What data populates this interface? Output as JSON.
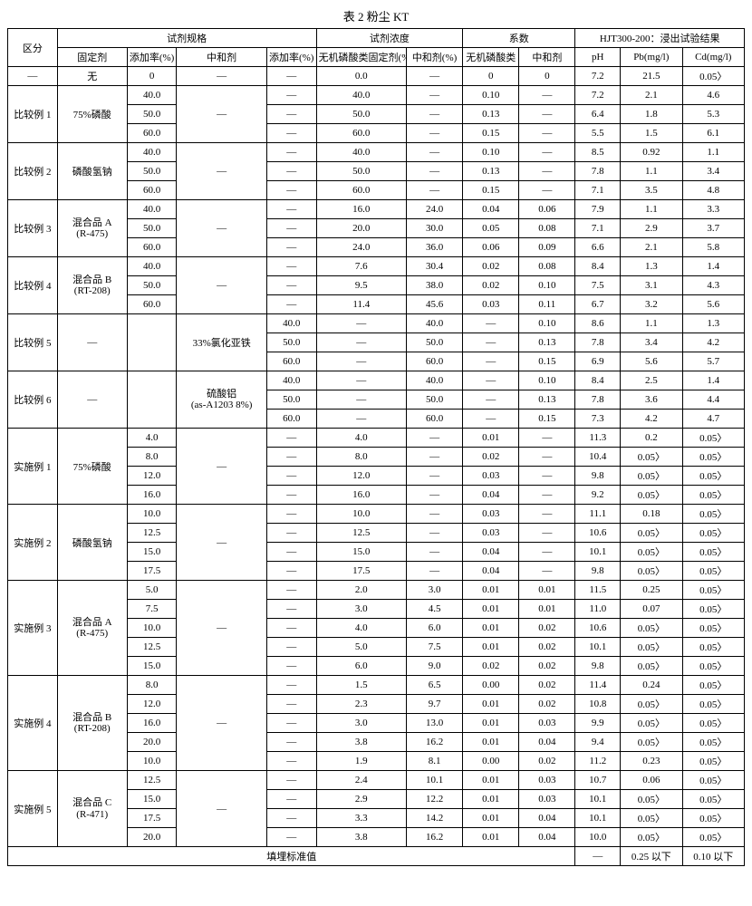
{
  "title": "表 2 粉尘 KT",
  "header": {
    "section": "区分",
    "reagent_spec": "试剂规格",
    "reagent_conc": "试剂浓度",
    "coeff": "系数",
    "hjt": "HJT300-200：浸出试验结果",
    "fix_agent": "固定剂",
    "add_rate": "添加率(%)",
    "neutralizer": "中和剂",
    "add_rate2": "添加率(%)",
    "inorg_fix": "无机磷酸类固定剂(%)",
    "neut_pct": "中和剂(%)",
    "inorg_phos": "无机磷酸类",
    "neutr": "中和剂",
    "ph": "pH",
    "pb": "Pb(mg/l)",
    "cd": "Cd(mg/l)"
  },
  "dash_row": {
    "section": "—",
    "fix": "无",
    "add1": "0",
    "neut": "—",
    "add2": "—",
    "c1": "0.0",
    "c2": "—",
    "k1": "0",
    "k2": "0",
    "ph": "7.2",
    "pb": "21.5",
    "cd": "0.05〉"
  },
  "groups": [
    {
      "section": "比较例 1",
      "fix": "75%磷酸",
      "neut": "—",
      "add2": [
        "—",
        "—",
        "—"
      ],
      "rows": [
        {
          "a": "40.0",
          "c1": "40.0",
          "c2": "—",
          "k1": "0.10",
          "k2": "—",
          "ph": "7.2",
          "pb": "2.1",
          "cd": "4.6"
        },
        {
          "a": "50.0",
          "c1": "50.0",
          "c2": "—",
          "k1": "0.13",
          "k2": "—",
          "ph": "6.4",
          "pb": "1.8",
          "cd": "5.3"
        },
        {
          "a": "60.0",
          "c1": "60.0",
          "c2": "—",
          "k1": "0.15",
          "k2": "—",
          "ph": "5.5",
          "pb": "1.5",
          "cd": "6.1"
        }
      ]
    },
    {
      "section": "比较例 2",
      "fix": "磷酸氢钠",
      "neut": "—",
      "add2": [
        "—",
        "—",
        "—"
      ],
      "rows": [
        {
          "a": "40.0",
          "c1": "40.0",
          "c2": "—",
          "k1": "0.10",
          "k2": "—",
          "ph": "8.5",
          "pb": "0.92",
          "cd": "1.1"
        },
        {
          "a": "50.0",
          "c1": "50.0",
          "c2": "—",
          "k1": "0.13",
          "k2": "—",
          "ph": "7.8",
          "pb": "1.1",
          "cd": "3.4"
        },
        {
          "a": "60.0",
          "c1": "60.0",
          "c2": "—",
          "k1": "0.15",
          "k2": "—",
          "ph": "7.1",
          "pb": "3.5",
          "cd": "4.8"
        }
      ]
    },
    {
      "section": "比较例 3",
      "fix_lines": [
        "混合品 A",
        "(R-475)"
      ],
      "neut": "—",
      "add2": [
        "—",
        "—",
        "—"
      ],
      "rows": [
        {
          "a": "40.0",
          "c1": "16.0",
          "c2": "24.0",
          "k1": "0.04",
          "k2": "0.06",
          "ph": "7.9",
          "pb": "1.1",
          "cd": "3.3"
        },
        {
          "a": "50.0",
          "c1": "20.0",
          "c2": "30.0",
          "k1": "0.05",
          "k2": "0.08",
          "ph": "7.1",
          "pb": "2.9",
          "cd": "3.7"
        },
        {
          "a": "60.0",
          "c1": "24.0",
          "c2": "36.0",
          "k1": "0.06",
          "k2": "0.09",
          "ph": "6.6",
          "pb": "2.1",
          "cd": "5.8"
        }
      ]
    },
    {
      "section": "比较例 4",
      "fix_lines": [
        "混合品 B",
        "(RT-208)"
      ],
      "neut": "—",
      "add2": [
        "—",
        "—",
        "—"
      ],
      "rows": [
        {
          "a": "40.0",
          "c1": "7.6",
          "c2": "30.4",
          "k1": "0.02",
          "k2": "0.08",
          "ph": "8.4",
          "pb": "1.3",
          "cd": "1.4"
        },
        {
          "a": "50.0",
          "c1": "9.5",
          "c2": "38.0",
          "k1": "0.02",
          "k2": "0.10",
          "ph": "7.5",
          "pb": "3.1",
          "cd": "4.3"
        },
        {
          "a": "60.0",
          "c1": "11.4",
          "c2": "45.6",
          "k1": "0.03",
          "k2": "0.11",
          "ph": "6.7",
          "pb": "3.2",
          "cd": "5.6"
        }
      ]
    },
    {
      "section": "比较例 5",
      "fix": "—",
      "ablank": true,
      "neut": "33%氯化亚铁",
      "add2": [
        "40.0",
        "50.0",
        "60.0"
      ],
      "rows": [
        {
          "a": "",
          "c1": "—",
          "c2": "40.0",
          "k1": "—",
          "k2": "0.10",
          "ph": "8.6",
          "pb": "1.1",
          "cd": "1.3"
        },
        {
          "a": "",
          "c1": "—",
          "c2": "50.0",
          "k1": "—",
          "k2": "0.13",
          "ph": "7.8",
          "pb": "3.4",
          "cd": "4.2"
        },
        {
          "a": "",
          "c1": "—",
          "c2": "60.0",
          "k1": "—",
          "k2": "0.15",
          "ph": "6.9",
          "pb": "5.6",
          "cd": "5.7"
        }
      ]
    },
    {
      "section": "比较例 6",
      "fix": "—",
      "ablank": true,
      "neut_lines": [
        "硫酸铝",
        "(as-A1203 8%)"
      ],
      "add2": [
        "40.0",
        "50.0",
        "60.0"
      ],
      "rows": [
        {
          "a": "",
          "c1": "—",
          "c2": "40.0",
          "k1": "—",
          "k2": "0.10",
          "ph": "8.4",
          "pb": "2.5",
          "cd": "1.4"
        },
        {
          "a": "",
          "c1": "—",
          "c2": "50.0",
          "k1": "—",
          "k2": "0.13",
          "ph": "7.8",
          "pb": "3.6",
          "cd": "4.4"
        },
        {
          "a": "",
          "c1": "—",
          "c2": "60.0",
          "k1": "—",
          "k2": "0.15",
          "ph": "7.3",
          "pb": "4.2",
          "cd": "4.7"
        }
      ]
    },
    {
      "section": "实施例 1",
      "fix": "75%磷酸",
      "neut": "—",
      "add2": [
        "—",
        "—",
        "—",
        "—"
      ],
      "rowspan": 4,
      "rows": [
        {
          "a": "4.0",
          "c1": "4.0",
          "c2": "—",
          "k1": "0.01",
          "k2": "—",
          "ph": "11.3",
          "pb": "0.2",
          "cd": "0.05〉"
        },
        {
          "a": "8.0",
          "c1": "8.0",
          "c2": "—",
          "k1": "0.02",
          "k2": "—",
          "ph": "10.4",
          "pb": "0.05〉",
          "cd": "0.05〉"
        },
        {
          "a": "12.0",
          "c1": "12.0",
          "c2": "—",
          "k1": "0.03",
          "k2": "—",
          "ph": "9.8",
          "pb": "0.05〉",
          "cd": "0.05〉"
        },
        {
          "a": "16.0",
          "c1": "16.0",
          "c2": "—",
          "k1": "0.04",
          "k2": "—",
          "ph": "9.2",
          "pb": "0.05〉",
          "cd": "0.05〉"
        }
      ]
    },
    {
      "section": "实施例 2",
      "fix": "磷酸氢钠",
      "neut": "—",
      "add2": [
        "—",
        "—",
        "—",
        "—"
      ],
      "rowspan": 4,
      "rows": [
        {
          "a": "10.0",
          "c1": "10.0",
          "c2": "—",
          "k1": "0.03",
          "k2": "—",
          "ph": "11.1",
          "pb": "0.18",
          "cd": "0.05〉"
        },
        {
          "a": "12.5",
          "c1": "12.5",
          "c2": "—",
          "k1": "0.03",
          "k2": "—",
          "ph": "10.6",
          "pb": "0.05〉",
          "cd": "0.05〉"
        },
        {
          "a": "15.0",
          "c1": "15.0",
          "c2": "—",
          "k1": "0.04",
          "k2": "—",
          "ph": "10.1",
          "pb": "0.05〉",
          "cd": "0.05〉"
        },
        {
          "a": "17.5",
          "c1": "17.5",
          "c2": "—",
          "k1": "0.04",
          "k2": "—",
          "ph": "9.8",
          "pb": "0.05〉",
          "cd": "0.05〉"
        }
      ]
    },
    {
      "section": "实施例 3",
      "fix_lines": [
        "混合品 A",
        "(R-475)"
      ],
      "neut": "—",
      "add2": [
        "—",
        "—",
        "—",
        "—",
        "—"
      ],
      "rowspan": 5,
      "rows": [
        {
          "a": "5.0",
          "c1": "2.0",
          "c2": "3.0",
          "k1": "0.01",
          "k2": "0.01",
          "ph": "11.5",
          "pb": "0.25",
          "cd": "0.05〉"
        },
        {
          "a": "7.5",
          "c1": "3.0",
          "c2": "4.5",
          "k1": "0.01",
          "k2": "0.01",
          "ph": "11.0",
          "pb": "0.07",
          "cd": "0.05〉"
        },
        {
          "a": "10.0",
          "c1": "4.0",
          "c2": "6.0",
          "k1": "0.01",
          "k2": "0.02",
          "ph": "10.6",
          "pb": "0.05〉",
          "cd": "0.05〉"
        },
        {
          "a": "12.5",
          "c1": "5.0",
          "c2": "7.5",
          "k1": "0.01",
          "k2": "0.02",
          "ph": "10.1",
          "pb": "0.05〉",
          "cd": "0.05〉"
        },
        {
          "a": "15.0",
          "c1": "6.0",
          "c2": "9.0",
          "k1": "0.02",
          "k2": "0.02",
          "ph": "9.8",
          "pb": "0.05〉",
          "cd": "0.05〉"
        }
      ]
    },
    {
      "section": "实施例 4",
      "fix_lines": [
        "混合品 B",
        "(RT-208)"
      ],
      "neut": "—",
      "add2": [
        "—",
        "—",
        "—",
        "—",
        "—"
      ],
      "rowspan": 5,
      "rows": [
        {
          "a": "8.0",
          "c1": "1.5",
          "c2": "6.5",
          "k1": "0.00",
          "k2": "0.02",
          "ph": "11.4",
          "pb": "0.24",
          "cd": "0.05〉"
        },
        {
          "a": "12.0",
          "c1": "2.3",
          "c2": "9.7",
          "k1": "0.01",
          "k2": "0.02",
          "ph": "10.8",
          "pb": "0.05〉",
          "cd": "0.05〉"
        },
        {
          "a": "16.0",
          "c1": "3.0",
          "c2": "13.0",
          "k1": "0.01",
          "k2": "0.03",
          "ph": "9.9",
          "pb": "0.05〉",
          "cd": "0.05〉"
        },
        {
          "a": "20.0",
          "c1": "3.8",
          "c2": "16.2",
          "k1": "0.01",
          "k2": "0.04",
          "ph": "9.4",
          "pb": "0.05〉",
          "cd": "0.05〉"
        },
        {
          "a": "10.0",
          "c1": "1.9",
          "c2": "8.1",
          "k1": "0.00",
          "k2": "0.02",
          "ph": "11.2",
          "pb": "0.23",
          "cd": "0.05〉"
        }
      ]
    },
    {
      "section": "实施例 5",
      "fix_lines": [
        "混合品 C",
        "(R-471)"
      ],
      "neut": "—",
      "add2": [
        "—",
        "—",
        "—",
        "—"
      ],
      "rowspan": 4,
      "rows": [
        {
          "a": "12.5",
          "c1": "2.4",
          "c2": "10.1",
          "k1": "0.01",
          "k2": "0.03",
          "ph": "10.7",
          "pb": "0.06",
          "cd": "0.05〉"
        },
        {
          "a": "15.0",
          "c1": "2.9",
          "c2": "12.2",
          "k1": "0.01",
          "k2": "0.03",
          "ph": "10.1",
          "pb": "0.05〉",
          "cd": "0.05〉"
        },
        {
          "a": "17.5",
          "c1": "3.3",
          "c2": "14.2",
          "k1": "0.01",
          "k2": "0.04",
          "ph": "10.1",
          "pb": "0.05〉",
          "cd": "0.05〉"
        },
        {
          "a": "20.0",
          "c1": "3.8",
          "c2": "16.2",
          "k1": "0.01",
          "k2": "0.04",
          "ph": "10.0",
          "pb": "0.05〉",
          "cd": "0.05〉"
        }
      ]
    }
  ],
  "footer": {
    "label": "填埋标准值",
    "ph": "—",
    "pb": "0.25 以下",
    "cd": "0.10 以下"
  }
}
